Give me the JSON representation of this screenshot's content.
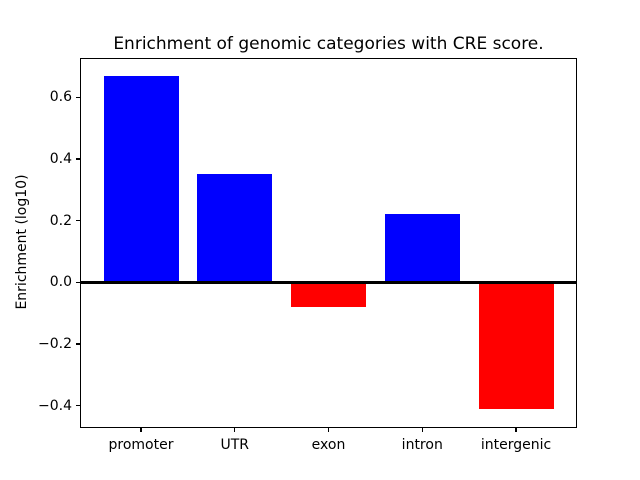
{
  "figure": {
    "background": "#ffffff"
  },
  "chart_data": {
    "type": "bar",
    "title": "Enrichment of genomic categories with CRE score.",
    "xlabel": "",
    "ylabel": "Enrichment (log10)",
    "categories": [
      "promoter",
      "UTR",
      "exon",
      "intron",
      "intergenic"
    ],
    "values": [
      0.67,
      0.35,
      -0.08,
      0.22,
      -0.41
    ],
    "bar_colors": [
      "#0000ff",
      "#0000ff",
      "#ff0000",
      "#0000ff",
      "#ff0000"
    ],
    "positive_color": "#0000ff",
    "negative_color": "#ff0000",
    "yticks": [
      {
        "value": -0.4,
        "label": "−0.4"
      },
      {
        "value": -0.2,
        "label": "−0.2"
      },
      {
        "value": 0.0,
        "label": "0.0"
      },
      {
        "value": 0.2,
        "label": "0.2"
      },
      {
        "value": 0.4,
        "label": "0.4"
      },
      {
        "value": 0.6,
        "label": "0.6"
      }
    ],
    "ylim": [
      -0.469,
      0.724
    ],
    "xlim": [
      -0.64,
      4.64
    ],
    "bar_width": 0.8,
    "grid": false,
    "legend": false,
    "zero_line": true,
    "axis_color": "#000000",
    "text_color": "#000000"
  }
}
